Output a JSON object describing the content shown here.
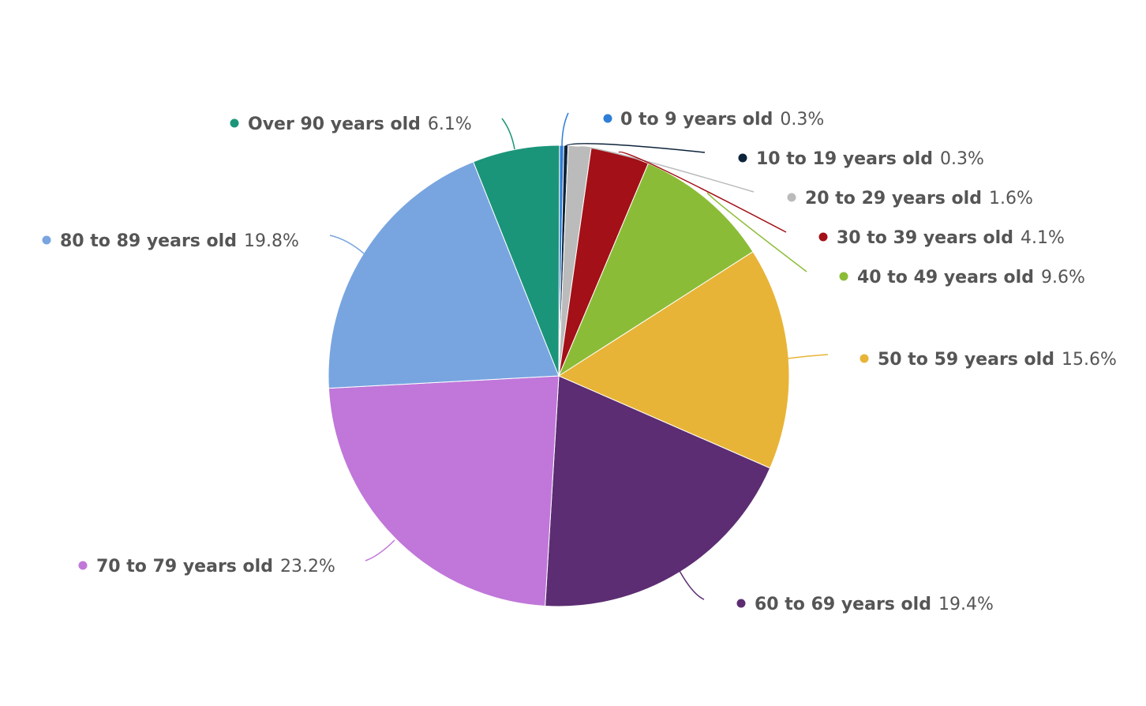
{
  "chart_data": {
    "type": "pie",
    "slices": [
      {
        "label": "0 to 9 years old",
        "value": 0.3,
        "display": "0.3%",
        "color": "#2F7ED8"
      },
      {
        "label": "10 to 19 years old",
        "value": 0.3,
        "display": "0.3%",
        "color": "#0D233A"
      },
      {
        "label": "20 to 29 years old",
        "value": 1.6,
        "display": "1.6%",
        "color": "#BBBBBB"
      },
      {
        "label": "30 to 39 years old",
        "value": 4.1,
        "display": "4.1%",
        "color": "#A31017"
      },
      {
        "label": "40 to 49 years old",
        "value": 9.6,
        "display": "9.6%",
        "color": "#8BBC37"
      },
      {
        "label": "50 to 59 years old",
        "value": 15.6,
        "display": "15.6%",
        "color": "#E8B437"
      },
      {
        "label": "60 to 69 years old",
        "value": 19.4,
        "display": "19.4%",
        "color": "#5C2D72"
      },
      {
        "label": "70 to 79 years old",
        "value": 23.2,
        "display": "23.2%",
        "color": "#C077D9"
      },
      {
        "label": "80 to 89 years old",
        "value": 19.8,
        "display": "19.8%",
        "color": "#78A5E0"
      },
      {
        "label": "Over 90 years old",
        "value": 6.1,
        "display": "6.1%",
        "color": "#1B9579"
      }
    ],
    "legend": "none",
    "data_labels": "outside with connectors"
  }
}
